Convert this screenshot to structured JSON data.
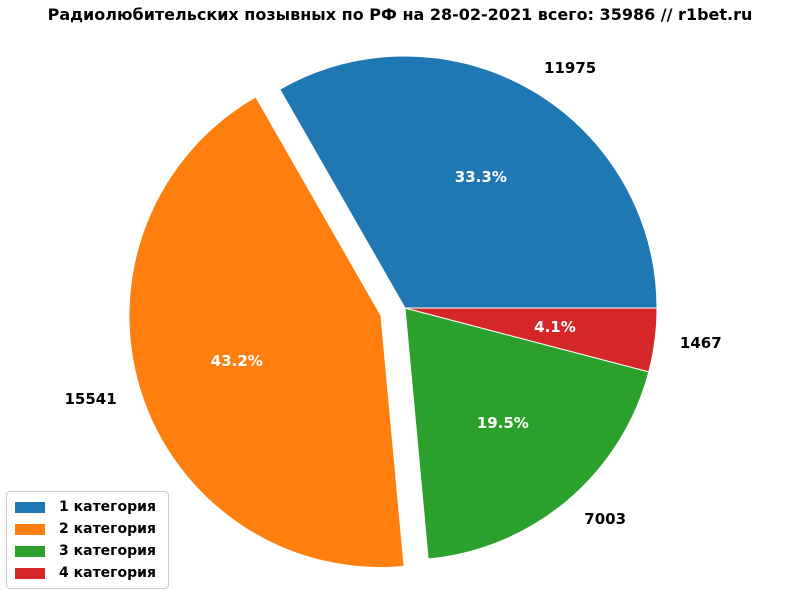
{
  "title": "Радиолюбительских позывных по РФ на 28-02-2021 всего: 35986 // r1bet.ru",
  "chart_data": {
    "type": "pie",
    "labels": [
      "1 категория",
      "2 категория",
      "3 категория",
      "4 категория"
    ],
    "values": [
      11975,
      15541,
      7003,
      1467
    ],
    "value_labels": [
      "11975",
      "15541",
      "7003",
      "1467"
    ],
    "pct_labels": [
      "33.3%",
      "43.2%",
      "19.5%",
      "4.1%"
    ],
    "colors": [
      "#1f77b4",
      "#ff7f0e",
      "#2ca02c",
      "#d62728"
    ],
    "explode": [
      0,
      0.1,
      0,
      0
    ],
    "start_angle": 0,
    "counterclock": true,
    "total": 35986,
    "label_distance": 1.1,
    "pct_distance": 0.6,
    "pct_color": "#ffffff",
    "label_color": "#000000",
    "legend_position": "lower-left",
    "wedge_edge_color": "#ffffff"
  }
}
